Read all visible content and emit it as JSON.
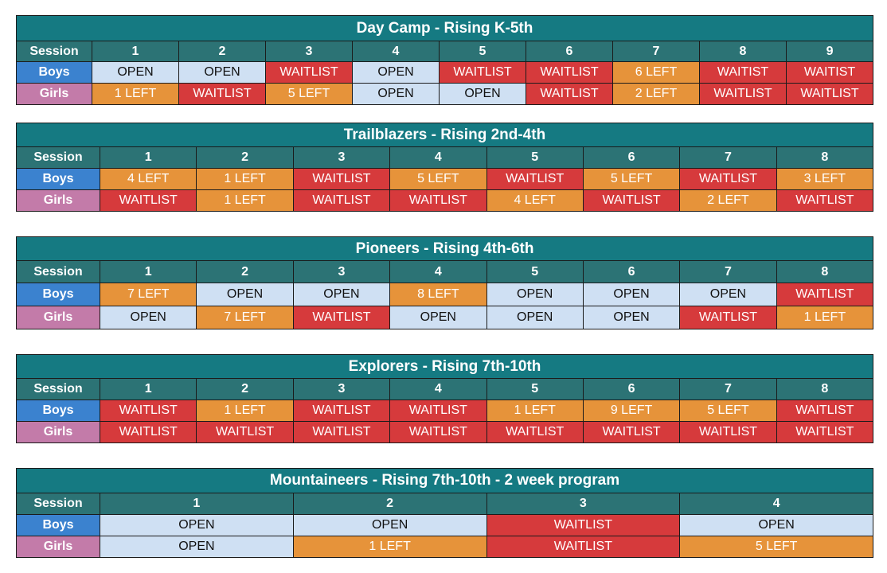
{
  "colors": {
    "title_bg": "#157a82",
    "header_bg": "#2c7375",
    "boys_label": "#3b82cf",
    "girls_label": "#c37ba9",
    "open": "#cfe0f3",
    "limited": "#e6933a",
    "waitlist": "#d63a3c"
  },
  "tables": [
    {
      "title": "Day Camp - Rising K-5th",
      "session_label": "Session",
      "sessions": [
        "1",
        "2",
        "3",
        "4",
        "5",
        "6",
        "7",
        "8",
        "9"
      ],
      "rows": [
        {
          "label": "Boys",
          "values": [
            "OPEN",
            "OPEN",
            "WAITLIST",
            "OPEN",
            "WAITLIST",
            "WAITLIST",
            "6 LEFT",
            "WAITIST",
            "WAITIST"
          ]
        },
        {
          "label": "Girls",
          "values": [
            "1 LEFT",
            "WAITLIST",
            "5 LEFT",
            "OPEN",
            "OPEN",
            "WAITLIST",
            "2 LEFT",
            "WAITLIST",
            "WAITLIST"
          ]
        }
      ]
    },
    {
      "title": "Trailblazers - Rising 2nd-4th",
      "session_label": "Session",
      "sessions": [
        "1",
        "2",
        "3",
        "4",
        "5",
        "6",
        "7",
        "8"
      ],
      "rows": [
        {
          "label": "Boys",
          "values": [
            "4 LEFT",
            "1 LEFT",
            "WAITLIST",
            "5 LEFT",
            "WAITLIST",
            "5 LEFT",
            "WAITLIST",
            "3 LEFT"
          ]
        },
        {
          "label": "Girls",
          "values": [
            "WAITLIST",
            "1 LEFT",
            "WAITLIST",
            "WAITLIST",
            "4 LEFT",
            "WAITLIST",
            "2 LEFT",
            "WAITLIST"
          ]
        }
      ]
    },
    {
      "title": "Pioneers - Rising 4th-6th",
      "session_label": "Session",
      "sessions": [
        "1",
        "2",
        "3",
        "4",
        "5",
        "6",
        "7",
        "8"
      ],
      "rows": [
        {
          "label": "Boys",
          "values": [
            "7 LEFT",
            "OPEN",
            "OPEN",
            "8 LEFT",
            "OPEN",
            "OPEN",
            "OPEN",
            "WAITLIST"
          ]
        },
        {
          "label": "Girls",
          "values": [
            "OPEN",
            "7 LEFT",
            "WAITLIST",
            "OPEN",
            "OPEN",
            "OPEN",
            "WAITLIST",
            "1 LEFT"
          ]
        }
      ]
    },
    {
      "title": "Explorers - Rising 7th-10th",
      "session_label": "Session",
      "sessions": [
        "1",
        "2",
        "3",
        "4",
        "5",
        "6",
        "7",
        "8"
      ],
      "rows": [
        {
          "label": "Boys",
          "values": [
            "WAITLIST",
            "1 LEFT",
            "WAITLIST",
            "WAITLIST",
            "1 LEFT",
            "9 LEFT",
            "5 LEFT",
            "WAITLIST"
          ]
        },
        {
          "label": "Girls",
          "values": [
            "WAITLIST",
            "WAITLIST",
            "WAITLIST",
            "WAITLIST",
            "WAITLIST",
            "WAITLIST",
            "WAITLIST",
            "WAITLIST"
          ]
        }
      ]
    },
    {
      "title": "Mountaineers - Rising 7th-10th - 2 week program",
      "session_label": "Session",
      "sessions": [
        "1",
        "2",
        "3",
        "4"
      ],
      "rows": [
        {
          "label": "Boys",
          "values": [
            "OPEN",
            "OPEN",
            "WAITLIST",
            "OPEN"
          ]
        },
        {
          "label": "Girls",
          "values": [
            "OPEN",
            "1 LEFT",
            "WAITLIST",
            "5 LEFT"
          ]
        }
      ]
    }
  ]
}
